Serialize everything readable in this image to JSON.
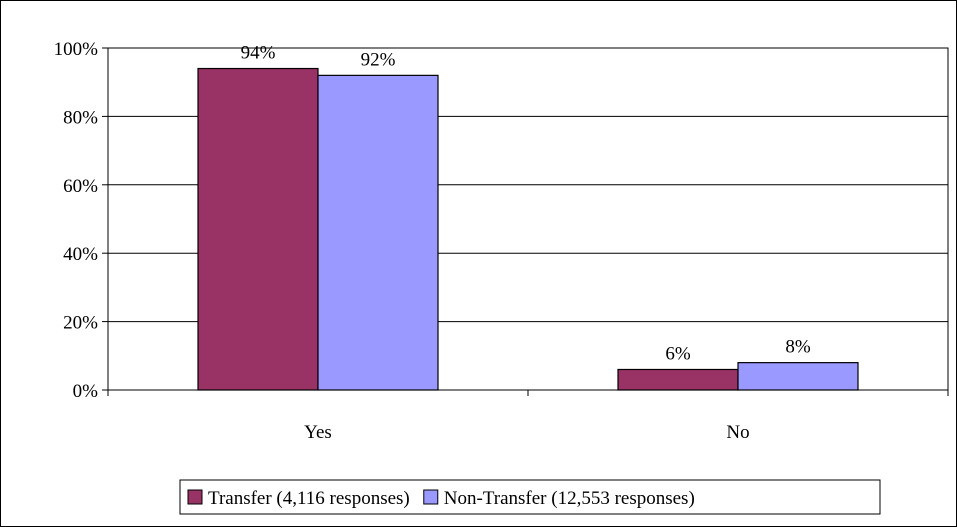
{
  "chart_data": {
    "type": "bar",
    "categories": [
      "Yes",
      "No"
    ],
    "series": [
      {
        "name": "Transfer (4,116 responses)",
        "values": [
          94,
          6
        ],
        "labels": [
          "94%",
          "6%"
        ],
        "color": "#993366"
      },
      {
        "name": "Non-Transfer (12,553 responses)",
        "values": [
          92,
          8
        ],
        "labels": [
          "92%",
          "8%"
        ],
        "color": "#9999FF"
      }
    ],
    "ylim": [
      0,
      100
    ],
    "yticks": [
      0,
      20,
      40,
      60,
      80,
      100
    ],
    "ytick_labels": [
      "0%",
      "20%",
      "40%",
      "60%",
      "80%",
      "100%"
    ],
    "grid": true,
    "legend_position": "bottom",
    "title": "",
    "xlabel": "",
    "ylabel": ""
  }
}
